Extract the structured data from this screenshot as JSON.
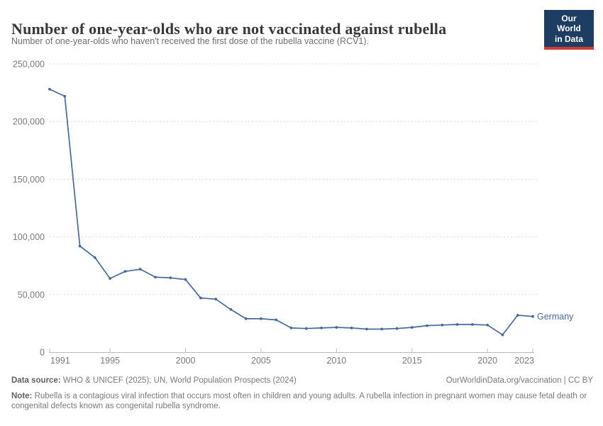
{
  "header": {
    "title": "Number of one-year-olds who are not vaccinated against rubella",
    "subtitle": "Number of one-year-olds who haven't received the first dose of the rubella vaccine (RCV1).",
    "logo_line1": "Our World",
    "logo_line2": "in Data"
  },
  "chart_data": {
    "type": "line",
    "title": "Number of one-year-olds who are not vaccinated against rubella",
    "xlabel": "",
    "ylabel": "",
    "xlim": [
      1991,
      2023
    ],
    "ylim": [
      0,
      250000
    ],
    "grid": "horizontal-dashed",
    "legend_position": "end-of-line-label",
    "x": [
      1991,
      1992,
      1993,
      1994,
      1995,
      1996,
      1997,
      1998,
      1999,
      2000,
      2001,
      2002,
      2003,
      2004,
      2005,
      2006,
      2007,
      2008,
      2009,
      2010,
      2011,
      2012,
      2013,
      2014,
      2015,
      2016,
      2017,
      2018,
      2019,
      2020,
      2021,
      2022,
      2023
    ],
    "series": [
      {
        "name": "Germany",
        "color": "#4569a0",
        "values": [
          228000,
          222000,
          92000,
          82000,
          64000,
          70000,
          72000,
          65000,
          64500,
          63000,
          47000,
          46000,
          37000,
          29000,
          29000,
          28000,
          21000,
          20500,
          21000,
          21500,
          21000,
          20000,
          20000,
          20500,
          21500,
          23000,
          23500,
          24000,
          24000,
          23500,
          15000,
          32000,
          31000
        ]
      }
    ],
    "x_ticks": [
      1991,
      1995,
      2000,
      2005,
      2010,
      2015,
      2020,
      2023
    ],
    "x_tick_labels": [
      "1991",
      "1995",
      "2000",
      "2005",
      "2010",
      "2015",
      "2020",
      "2023"
    ],
    "y_ticks": [
      0,
      50000,
      100000,
      150000,
      200000,
      250000
    ],
    "y_tick_labels": [
      "0",
      "50,000",
      "100,000",
      "150,000",
      "200,000",
      "250,000"
    ],
    "entity_label": "Germany"
  },
  "footer": {
    "source_label": "Data source:",
    "source_text": " WHO & UNICEF (2025); UN, World Population Prospects (2024)",
    "link_text": "OurWorldinData.org/vaccination | CC BY",
    "note_label": "Note:",
    "note_text": " Rubella is a contagious viral infection that occurs most often in children and young adults. A rubella infection in pregnant women may cause fetal death or congenital defects known as congenital rubella syndrome."
  },
  "colors": {
    "series_blue": "#4569a0",
    "logo_bg": "#1d3d63",
    "logo_red": "#d13b32",
    "gridline": "#dcdcdc",
    "axis": "#b9b9b9",
    "tick_text": "#7a7a7a",
    "title_text": "#383838",
    "subtitle_text": "#6e6e6e",
    "footer_text": "#7a7a7a"
  }
}
